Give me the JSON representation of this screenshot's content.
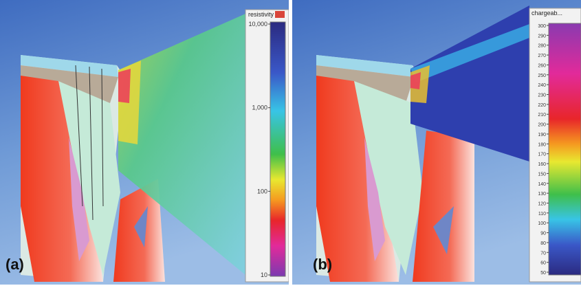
{
  "panels": [
    {
      "label": "(a)",
      "legend": {
        "title": "resistivity",
        "ticks": [
          "10,000",
          "1,000",
          "100",
          "10"
        ],
        "scale": "log"
      }
    },
    {
      "label": "(b)",
      "legend": {
        "title": "chargeab...",
        "ticks": [
          "300",
          "290",
          "280",
          "270",
          "260",
          "250",
          "240",
          "230",
          "220",
          "210",
          "200",
          "190",
          "180",
          "170",
          "160",
          "150",
          "140",
          "130",
          "120",
          "110",
          "100",
          "90",
          "80",
          "70",
          "60",
          "50"
        ],
        "scale": "linear"
      }
    }
  ]
}
